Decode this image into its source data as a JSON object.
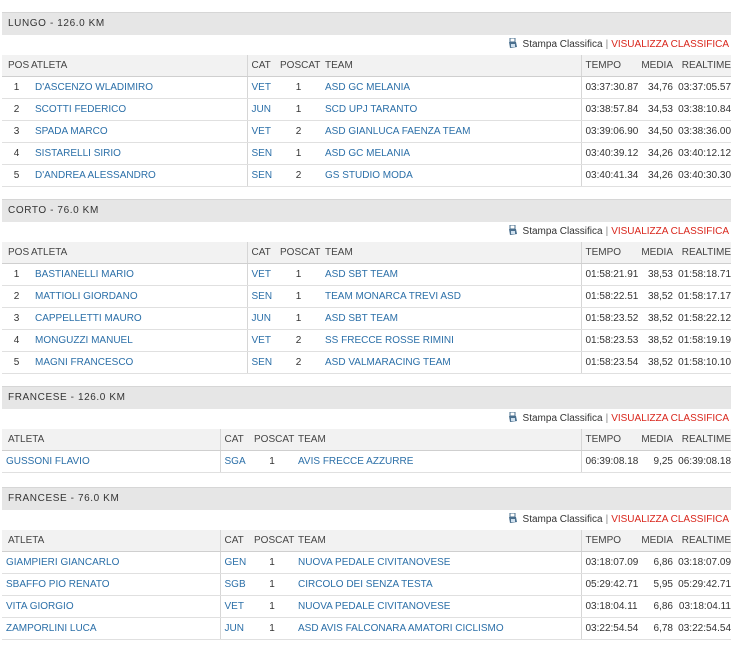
{
  "actions": {
    "print": "Stampa Classifica",
    "separator": "|",
    "view": "VISUALIZZA CLASSIFICA"
  },
  "sections": [
    {
      "title": "LUNGO - 126.0 KM",
      "headers": {
        "pos": "POS",
        "atleta": "ATLETA",
        "cat": "CAT",
        "poscat": "POSCAT",
        "team": "TEAM",
        "tempo": "TEMPO",
        "media": "MEDIA",
        "realtime": "REALTIME"
      },
      "rows": [
        {
          "pos": "1",
          "atleta": "D'ASCENZO WLADIMIRO",
          "cat": "VET",
          "poscat": "1",
          "team": "ASD GC MELANIA",
          "tempo": "03:37:30.87",
          "media": "34,76",
          "realtime": "03:37:05.57"
        },
        {
          "pos": "2",
          "atleta": "SCOTTI FEDERICO",
          "cat": "JUN",
          "poscat": "1",
          "team": "SCD UPJ TARANTO",
          "tempo": "03:38:57.84",
          "media": "34,53",
          "realtime": "03:38:10.84"
        },
        {
          "pos": "3",
          "atleta": "SPADA MARCO",
          "cat": "VET",
          "poscat": "2",
          "team": "ASD GIANLUCA FAENZA TEAM",
          "tempo": "03:39:06.90",
          "media": "34,50",
          "realtime": "03:38:36.00"
        },
        {
          "pos": "4",
          "atleta": "SISTARELLI SIRIO",
          "cat": "SEN",
          "poscat": "1",
          "team": "ASD GC MELANIA",
          "tempo": "03:40:39.12",
          "media": "34,26",
          "realtime": "03:40:12.12"
        },
        {
          "pos": "5",
          "atleta": "D'ANDREA ALESSANDRO",
          "cat": "SEN",
          "poscat": "2",
          "team": "GS STUDIO MODA",
          "tempo": "03:40:41.34",
          "media": "34,26",
          "realtime": "03:40:30.30"
        }
      ]
    },
    {
      "title": "CORTO - 76.0 KM",
      "headers": {
        "pos": "POS",
        "atleta": "ATLETA",
        "cat": "CAT",
        "poscat": "POSCAT",
        "team": "TEAM",
        "tempo": "TEMPO",
        "media": "MEDIA",
        "realtime": "REALTIME"
      },
      "rows": [
        {
          "pos": "1",
          "atleta": "BASTIANELLI MARIO",
          "cat": "VET",
          "poscat": "1",
          "team": "ASD SBT TEAM",
          "tempo": "01:58:21.91",
          "media": "38,53",
          "realtime": "01:58:18.71"
        },
        {
          "pos": "2",
          "atleta": "MATTIOLI GIORDANO",
          "cat": "SEN",
          "poscat": "1",
          "team": "TEAM MONARCA TREVI ASD",
          "tempo": "01:58:22.51",
          "media": "38,52",
          "realtime": "01:58:17.17"
        },
        {
          "pos": "3",
          "atleta": "CAPPELLETTI MAURO",
          "cat": "JUN",
          "poscat": "1",
          "team": "ASD SBT TEAM",
          "tempo": "01:58:23.52",
          "media": "38,52",
          "realtime": "01:58:22.12"
        },
        {
          "pos": "4",
          "atleta": "MONGUZZI MANUEL",
          "cat": "VET",
          "poscat": "2",
          "team": "SS FRECCE ROSSE RIMINI",
          "tempo": "01:58:23.53",
          "media": "38,52",
          "realtime": "01:58:19.19"
        },
        {
          "pos": "5",
          "atleta": "MAGNI FRANCESCO",
          "cat": "SEN",
          "poscat": "2",
          "team": "ASD VALMARACING TEAM",
          "tempo": "01:58:23.54",
          "media": "38,52",
          "realtime": "01:58:10.10"
        }
      ]
    },
    {
      "title": "FRANCESE - 126.0 KM",
      "headers": {
        "atleta": "ATLETA",
        "cat": "CAT",
        "poscat": "POSCAT",
        "team": "TEAM",
        "tempo": "TEMPO",
        "media": "MEDIA",
        "realtime": "REALTIME"
      },
      "rows": [
        {
          "atleta": "GUSSONI FLAVIO",
          "cat": "SGA",
          "poscat": "1",
          "team": "AVIS FRECCE AZZURRE",
          "tempo": "06:39:08.18",
          "media": "9,25",
          "realtime": "06:39:08.18"
        }
      ]
    },
    {
      "title": "FRANCESE - 76.0 KM",
      "headers": {
        "atleta": "ATLETA",
        "cat": "CAT",
        "poscat": "POSCAT",
        "team": "TEAM",
        "tempo": "TEMPO",
        "media": "MEDIA",
        "realtime": "REALTIME"
      },
      "rows": [
        {
          "atleta": "GIAMPIERI GIANCARLO",
          "cat": "GEN",
          "poscat": "1",
          "team": "NUOVA PEDALE CIVITANOVESE",
          "tempo": "03:18:07.09",
          "media": "6,86",
          "realtime": "03:18:07.09"
        },
        {
          "atleta": "SBAFFO PIO RENATO",
          "cat": "SGB",
          "poscat": "1",
          "team": "CIRCOLO DEI SENZA TESTA",
          "tempo": "05:29:42.71",
          "media": "5,95",
          "realtime": "05:29:42.71"
        },
        {
          "atleta": "VITA GIORGIO",
          "cat": "VET",
          "poscat": "1",
          "team": "NUOVA PEDALE CIVITANOVESE",
          "tempo": "03:18:04.11",
          "media": "6,86",
          "realtime": "03:18:04.11"
        },
        {
          "atleta": "ZAMPORLINI LUCA",
          "cat": "JUN",
          "poscat": "1",
          "team": "ASD AVIS FALCONARA AMATORI CICLISMO",
          "tempo": "03:22:54.54",
          "media": "6,78",
          "realtime": "03:22:54.54"
        }
      ]
    }
  ]
}
